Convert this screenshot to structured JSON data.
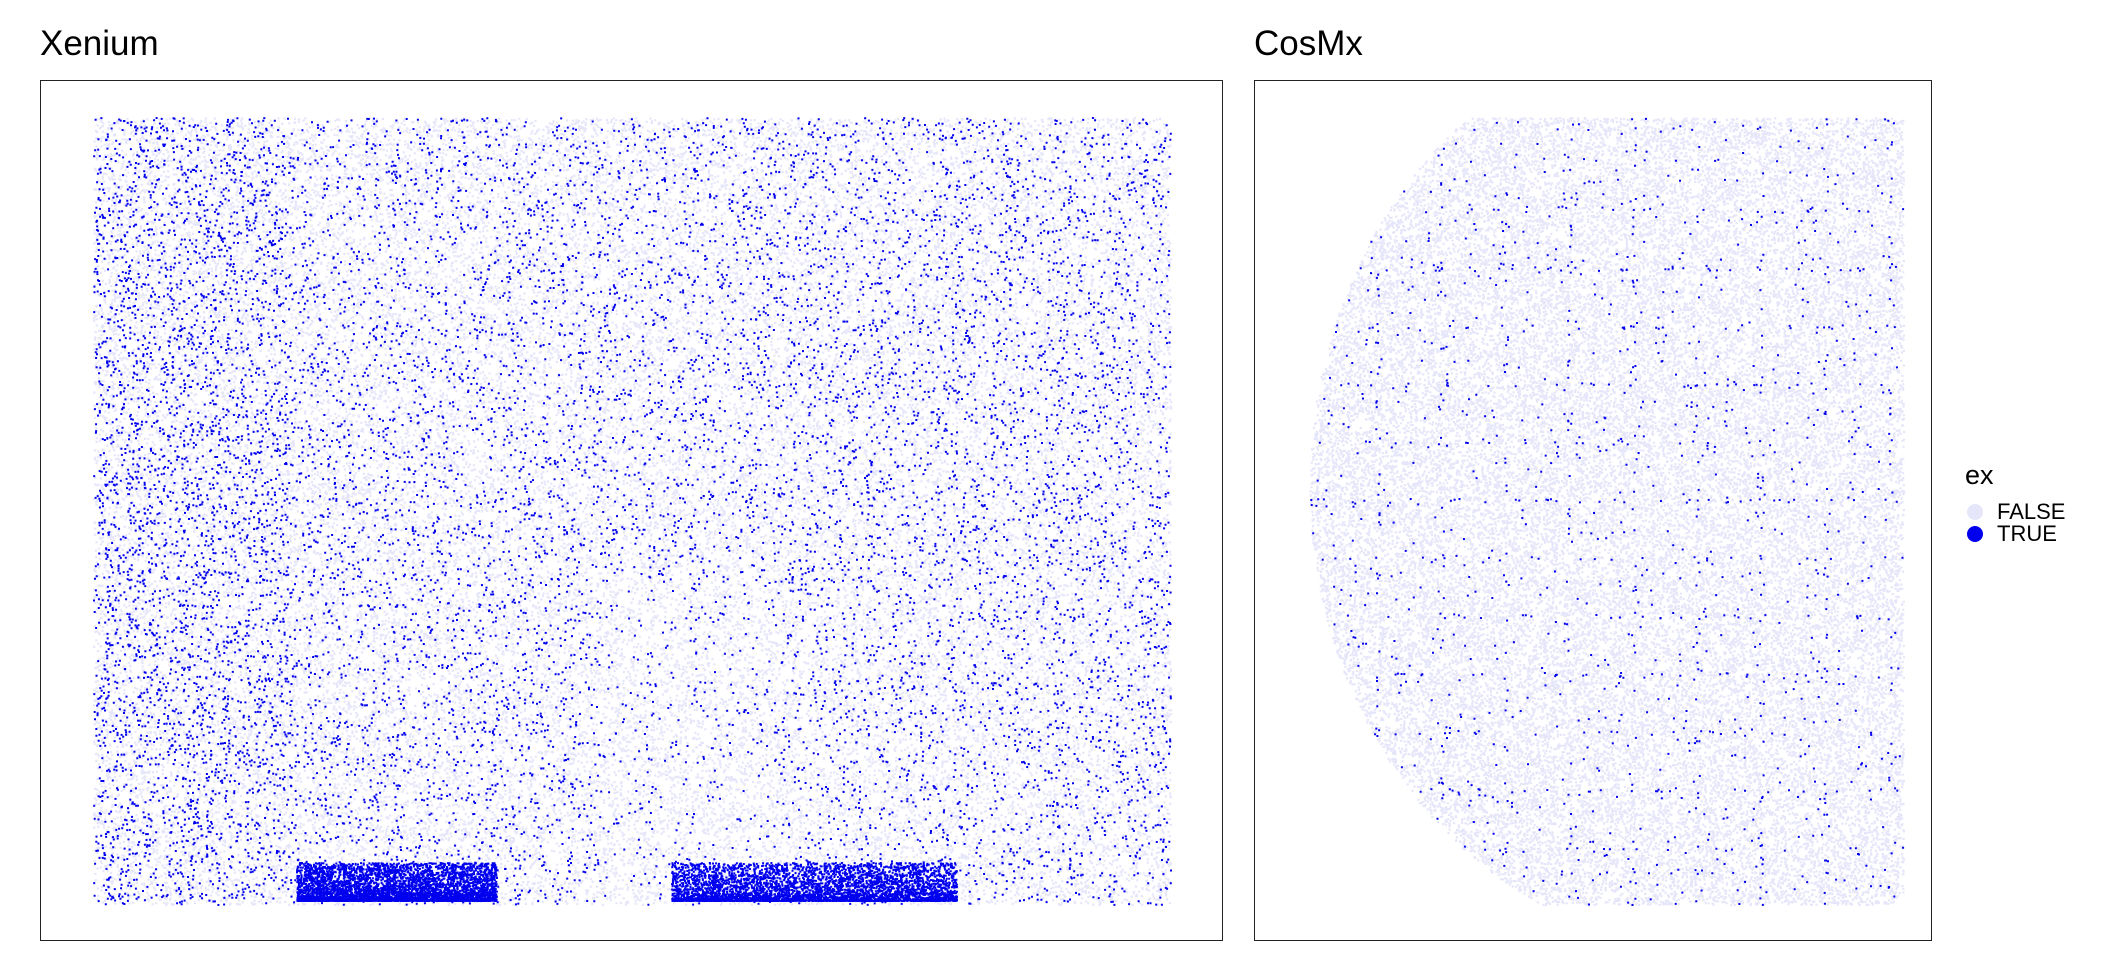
{
  "chart_data": [
    {
      "type": "scatter",
      "title": "Xenium",
      "xlabel": "",
      "ylabel": "",
      "grid": false,
      "legend": "shared, right",
      "series": [
        {
          "name": "FALSE",
          "color": "#e6e6fa",
          "description_level": "dense background of all cells"
        },
        {
          "name": "TRUE",
          "color": "#0000ee",
          "approx_fraction_of_cells": 0.3,
          "dense_bands_at_bottom": true
        }
      ]
    },
    {
      "type": "scatter",
      "title": "CosMx",
      "xlabel": "",
      "ylabel": "",
      "grid": false,
      "legend": "shared, right",
      "series": [
        {
          "name": "FALSE",
          "color": "#e6e6fa"
        },
        {
          "name": "TRUE",
          "color": "#0000ee",
          "approx_fraction_of_cells": 0.05,
          "concentrated_along_fov_edges": true
        }
      ]
    }
  ],
  "legend": {
    "title": "ex",
    "items": [
      {
        "label": "FALSE",
        "color": "#e6e6fa"
      },
      {
        "label": "TRUE",
        "color": "#0000ee"
      }
    ]
  }
}
